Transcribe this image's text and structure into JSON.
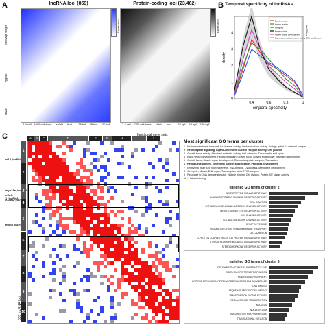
{
  "panelA": {
    "letter": "A",
    "lnc_title": "lncRNA loci (859)",
    "pc_title": "Protein-coding loci (23,462)",
    "stage_labels": [
      "2-4 cell",
      "1000 cell",
      "dome",
      "shield",
      "bud",
      "28 hpf",
      "48 hpf",
      "120 hpf"
    ],
    "row_groups": [
      "cleavage stages",
      "zygotic",
      "larval"
    ],
    "scale_label": "Expression",
    "scale_ticks": [
      "1.0",
      "0.8",
      "0.6",
      "0.4",
      "0.2",
      "0"
    ],
    "colors": {
      "lnc": "#2a3cff",
      "pc": "#222222"
    }
  },
  "panelB": {
    "letter": "B",
    "title": "Temporal specificity of lncRNAs",
    "xlabel": "Temporal specificity",
    "ylabel": "density",
    "legend_title": "lncRNAs",
    "legend": [
      "Exonic overlap",
      "Intronic overlap",
      "Intergenic",
      "Protein-coding",
      "Protein-coding (development)",
      "Expression-matched protein-coding (95% confidence interval based on 10k sampling)"
    ],
    "xticks": [
      "0.4",
      "0.6",
      "0.8",
      "1"
    ],
    "yticks": [
      "0",
      "1",
      "2",
      "3",
      "4"
    ]
  },
  "chart_data": {
    "type": "line",
    "x": [
      0.2,
      0.3,
      0.4,
      0.5,
      0.6,
      0.7,
      0.8,
      0.9,
      1.0
    ],
    "series": [
      {
        "name": "Exonic overlap",
        "values": [
          0.2,
          1.8,
          3.6,
          2.8,
          2.1,
          1.8,
          1.4,
          1.0,
          0.2
        ]
      },
      {
        "name": "Intronic overlap",
        "values": [
          0.3,
          2.0,
          3.4,
          3.0,
          2.4,
          1.8,
          1.2,
          0.8,
          0.1
        ]
      },
      {
        "name": "Intergenic",
        "values": [
          0.2,
          1.5,
          3.0,
          2.6,
          2.2,
          1.9,
          1.5,
          1.1,
          0.2
        ]
      },
      {
        "name": "Protein-coding",
        "values": [
          0.5,
          3.2,
          5.0,
          3.0,
          1.8,
          1.2,
          0.7,
          0.4,
          0.1
        ]
      },
      {
        "name": "Protein-coding (development)",
        "values": [
          0.3,
          2.4,
          4.2,
          3.0,
          2.0,
          1.5,
          1.0,
          0.6,
          0.1
        ]
      }
    ],
    "xlim": [
      0.2,
      1.0
    ],
    "ylim": [
      0,
      5
    ]
  },
  "panelC": {
    "letter": "C",
    "functional_label": "functional gene sets",
    "col_groups": [
      "A",
      "B",
      "C",
      "D",
      "E",
      "F",
      "H",
      "I",
      "J"
    ],
    "cluster_numbers": [
      "1",
      "2",
      "3",
      "4",
      "5",
      "6",
      "7",
      "8",
      "9",
      "10"
    ],
    "gene_labels": [
      "st18_lncRNA",
      "myo18a_lncRNA",
      "mfr-9-1_lncRNA",
      "hoxAa_lncRNA",
      "mpnp_lncRNA"
    ],
    "y_label": "835 lncRNA loci"
  },
  "go": {
    "title": "Most significant GO terms per cluster",
    "items": [
      "1 - K+ transmembrane transport, K+ channel activity, Oxidoreductase activity, Voltage-gated K+ channel complex",
      "2 - Neuropeptide signaling, Ligand-dependent nuclear receptor activity, Cell junction",
      "3 - Growth factor activity, Structural molecule activity, Cell adhesion, Tricarboxylic acid cycle",
      "4 - Blood vessel development, Heart contraction, Growth factor activity, Multicellular organism development",
      "5 - Growth factor, Muscle organ development, Ribonucleoprotein complex, Translation",
      "6 - Retina Development, Embryonic pattern specification, Pancreas development",
      "7 - Embryonic heart tube morphogenesis, RNA binding, Cytokinesis, Mesoderm development",
      "8 - Cell cycle, Mitosis, DNA repair, Transcription factor TFIID complex",
      "9 - Response to DNA damage stimulus, Histone binding, Cell division, Protein-SIT kinase activity",
      "10 - Histone binding"
    ]
  },
  "bars2": {
    "title": "enriched GO terms of cluster 2",
    "labels": [
      "NEUROPEPTIDE SIGNALING PATHWAY",
      "LIGAND-DEPENDENT NUCLEAR RECEPTOR ACTIVITY",
      "CELL JUNCTION",
      "EXTRACELLULAR-LIGAND-GATED ION CHANNEL ACTIVITY",
      "NEUROTRANSMITTER RECEPTOR ACTIVITY",
      "ION CHANNEL ACTIVITY",
      "VOLTAGE-GATED ION CHANNEL ACTIVITY",
      "SYNAPTIC VESICLE",
      "REGULATION OF ION TRANSMEMBRANE TRANSPORT",
      "CELL ADHESION",
      "G-PROTEIN COUPLED RECEPTOR PROTEIN SIGNALING PATHWAY",
      "STEROID HORMONE MEDIATED SIGNALING PATHWAY",
      "STEROID HORMONE RECEPTOR ACTIVITY"
    ],
    "values": [
      95,
      70,
      62,
      55,
      50,
      47,
      44,
      40,
      37,
      34,
      30,
      26,
      22
    ]
  },
  "bars6": {
    "title": "enriched GO terms of cluster 6",
    "labels": [
      "RETINA DEVELOPMENT IN CAMERA-TYPE EYE",
      "EMBRYONIC PATTERN SPECIFICATION",
      "PANCREAS DEVELOPMENT",
      "POSITIVE REGULATION OF TRANSCRIPTION FROM RNA POLYMERASE",
      "DNA BINDING",
      "SEQUENCE-SPECIFIC DNA BINDING",
      "TRANSCRIPTION FACTOR ACTIVITY",
      "REGULATION OF TRANSCRIPTION",
      "NUCLEUS",
      "NUCLEOPLASM",
      "DNA-DIRECTED RNA POLYMERASE",
      "TRANSLATIONAL INITIATION"
    ],
    "values": [
      95,
      85,
      75,
      70,
      62,
      58,
      55,
      50,
      45,
      40,
      35,
      30
    ]
  }
}
